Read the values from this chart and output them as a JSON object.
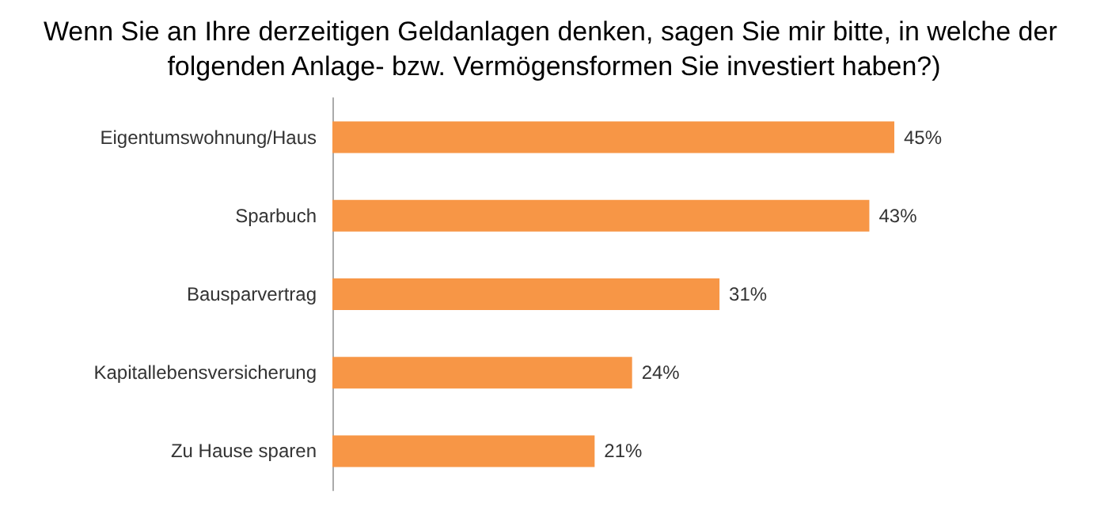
{
  "chart_data": {
    "type": "bar",
    "orientation": "horizontal",
    "title": "Wenn Sie an Ihre derzeitigen Geldanlagen denken, sagen Sie mir bitte, in welche der folgenden Anlage- bzw. Vermögensformen Sie investiert haben?)",
    "categories": [
      "Eigentumswohnung/Haus",
      "Sparbuch",
      "Bausparvertrag",
      "Kapitallebensversicherung",
      "Zu Hause sparen"
    ],
    "values": [
      45,
      43,
      31,
      24,
      21
    ],
    "value_labels": [
      "45%",
      "43%",
      "31%",
      "24%",
      "21%"
    ],
    "color": "#f79646"
  }
}
